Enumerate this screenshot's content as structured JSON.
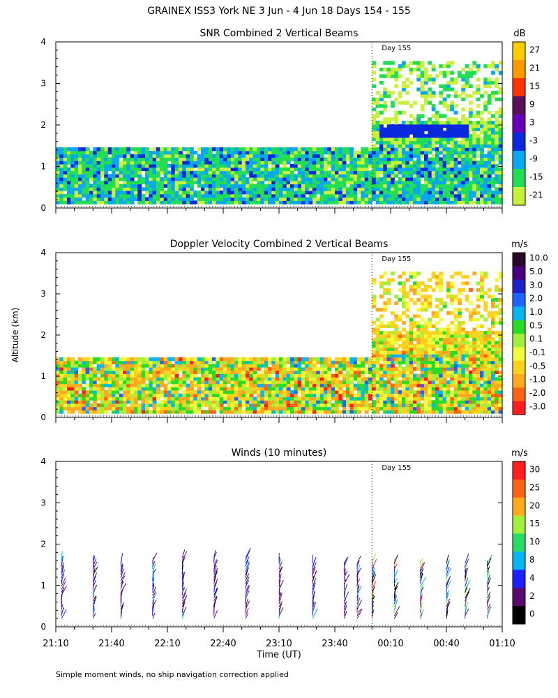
{
  "figure": {
    "title": "GRAINEX ISS3 York NE    3 Jun  -  4 Jun 18 Days 154 - 155",
    "footnote": "Simple moment winds, no ship navigation correction applied",
    "ylabel": "Altitude (km)",
    "xlabel": "Time (UT)",
    "x_tick_labels": [
      "21:10",
      "21:40",
      "22:10",
      "22:40",
      "23:10",
      "23:40",
      "00:10",
      "00:40",
      "01:10"
    ],
    "x_tick_minutes": [
      0,
      30,
      60,
      90,
      120,
      150,
      180,
      210,
      240
    ],
    "day_marker_label": "Day 155",
    "day_marker_minute": 170
  },
  "chart_data": [
    {
      "type": "heatmap",
      "title": "SNR Combined 2 Vertical Beams",
      "units": "dB",
      "xlabel": "Time (UT)",
      "ylabel": "Altitude (km)",
      "xlim_minutes": [
        0,
        240
      ],
      "ylim": [
        0,
        4
      ],
      "y_ticks": [
        "0",
        "1",
        "2",
        "3",
        "4"
      ],
      "colorbar_labels": [
        "27",
        "21",
        "15",
        "9",
        "3",
        "-3",
        "-9",
        "-15",
        "-21"
      ],
      "colorbar_colors": [
        "#ffcc00",
        "#ff9900",
        "#ff3300",
        "#5a0f5a",
        "#6600bb",
        "#0a28dd",
        "#0aa8f0",
        "#22dd55",
        "#c8f03c"
      ],
      "coverage": [
        {
          "t_start": 0,
          "t_end": 170,
          "alt_min": 0.1,
          "alt_max": 1.4
        },
        {
          "t_start": 170,
          "t_end": 240,
          "alt_min": 0.1,
          "alt_max": 3.5
        }
      ],
      "features": [
        {
          "label": "low SNR layer",
          "t_start": 172,
          "t_end": 220,
          "alt": 1.8
        }
      ]
    },
    {
      "type": "heatmap",
      "title": "Doppler Velocity Combined 2 Vertical Beams",
      "units": "m/s",
      "xlabel": "Time (UT)",
      "ylabel": "Altitude (km)",
      "xlim_minutes": [
        0,
        240
      ],
      "ylim": [
        0,
        4
      ],
      "y_ticks": [
        "0",
        "1",
        "2",
        "3",
        "4"
      ],
      "colorbar_labels": [
        "10.0",
        "5.0",
        "3.0",
        "2.0",
        "1.0",
        "0.5",
        "0.1",
        "-0.1",
        "-0.5",
        "-1.0",
        "-2.0",
        "-3.0"
      ],
      "colorbar_colors": [
        "#2a0a2a",
        "#4b0082",
        "#2020c8",
        "#1e64ff",
        "#0ab4f0",
        "#28dc28",
        "#a0f03c",
        "#f0ff3c",
        "#ffd21e",
        "#ffaa1e",
        "#ff6414",
        "#ff1e1e"
      ],
      "coverage": [
        {
          "t_start": 0,
          "t_end": 170,
          "alt_min": 0.1,
          "alt_max": 1.4
        },
        {
          "t_start": 170,
          "t_end": 240,
          "alt_min": 0.1,
          "alt_max": 3.5
        }
      ]
    },
    {
      "type": "wind_barbs",
      "title": "Winds (10 minutes)",
      "units": "m/s",
      "xlabel": "Time (UT)",
      "ylabel": "Altitude (km)",
      "xlim_minutes": [
        0,
        240
      ],
      "ylim": [
        0,
        4
      ],
      "y_ticks": [
        "0",
        "1",
        "2",
        "3",
        "4"
      ],
      "colorbar_labels": [
        "30",
        "25",
        "20",
        "15",
        "10",
        "8",
        "4",
        "2",
        "0"
      ],
      "colorbar_colors": [
        "#ff1e1e",
        "#ff6414",
        "#ffaa1e",
        "#a0f03c",
        "#28dc64",
        "#0ab4f0",
        "#1e1eff",
        "#5a0a6e",
        "#000000"
      ],
      "profile_times_minutes": [
        3,
        20,
        35,
        52,
        68,
        85,
        102,
        120,
        138,
        155,
        162,
        170,
        182,
        196,
        210,
        220,
        232
      ],
      "profile_tops_km": [
        1.65,
        1.65,
        1.6,
        1.65,
        1.7,
        1.7,
        1.7,
        1.65,
        1.6,
        1.6,
        1.6,
        1.6,
        1.6,
        1.6,
        1.6,
        1.6,
        1.6
      ]
    }
  ]
}
